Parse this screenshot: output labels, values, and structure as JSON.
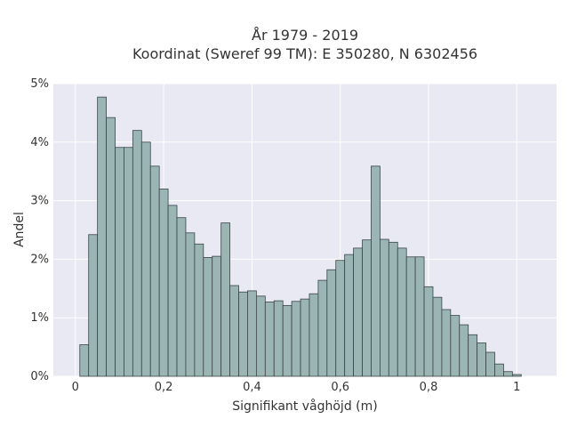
{
  "chart_data": {
    "type": "bar",
    "title_lines": [
      "År 1979 - 2019",
      "Koordinat (Sweref 99 TM): E 350280, N 6302456"
    ],
    "xlabel": "Signifikant våghöjd (m)",
    "ylabel": "Andel",
    "xlim": [
      -0.05,
      1.09
    ],
    "ylim": [
      0,
      5
    ],
    "x_ticks": [
      0,
      0.2,
      0.4,
      0.6,
      0.8,
      1
    ],
    "x_tick_labels": [
      "0",
      "0,2",
      "0,4",
      "0,6",
      "0,8",
      "1"
    ],
    "y_ticks": [
      0,
      1,
      2,
      3,
      4,
      5
    ],
    "y_tick_labels": [
      "0%",
      "1%",
      "2%",
      "3%",
      "4%",
      "5%"
    ],
    "bin_width": 0.02,
    "bin_starts": [
      0.01,
      0.03,
      0.05,
      0.07,
      0.09,
      0.11,
      0.13,
      0.15,
      0.17,
      0.19,
      0.21,
      0.23,
      0.25,
      0.27,
      0.29,
      0.31,
      0.33,
      0.35,
      0.37,
      0.39,
      0.41,
      0.43,
      0.45,
      0.47,
      0.49,
      0.51,
      0.53,
      0.55,
      0.57,
      0.59,
      0.61,
      0.63,
      0.65,
      0.67,
      0.69,
      0.71,
      0.73,
      0.75,
      0.77,
      0.79,
      0.81,
      0.83,
      0.85,
      0.87,
      0.89,
      0.91,
      0.93,
      0.95,
      0.97,
      0.99,
      1.01
    ],
    "values": [
      0.54,
      2.42,
      4.77,
      4.42,
      3.91,
      3.91,
      4.2,
      4.0,
      3.59,
      3.2,
      2.92,
      2.71,
      2.45,
      2.26,
      2.03,
      2.05,
      2.62,
      1.55,
      1.44,
      1.46,
      1.37,
      1.27,
      1.29,
      1.21,
      1.28,
      1.32,
      1.41,
      1.64,
      1.82,
      1.98,
      2.08,
      2.19,
      2.33,
      3.59,
      2.34,
      2.29,
      2.19,
      2.04,
      2.04,
      1.53,
      1.35,
      1.14,
      1.04,
      0.88,
      0.71,
      0.57,
      0.41,
      0.21,
      0.08,
      0.03,
      0.0
    ],
    "grid": true,
    "colors": {
      "bar_fill": "#9bb5b5",
      "bar_stroke": "#3a4545",
      "plot_background": "#e8e9f3",
      "grid": "#ffffff"
    }
  }
}
